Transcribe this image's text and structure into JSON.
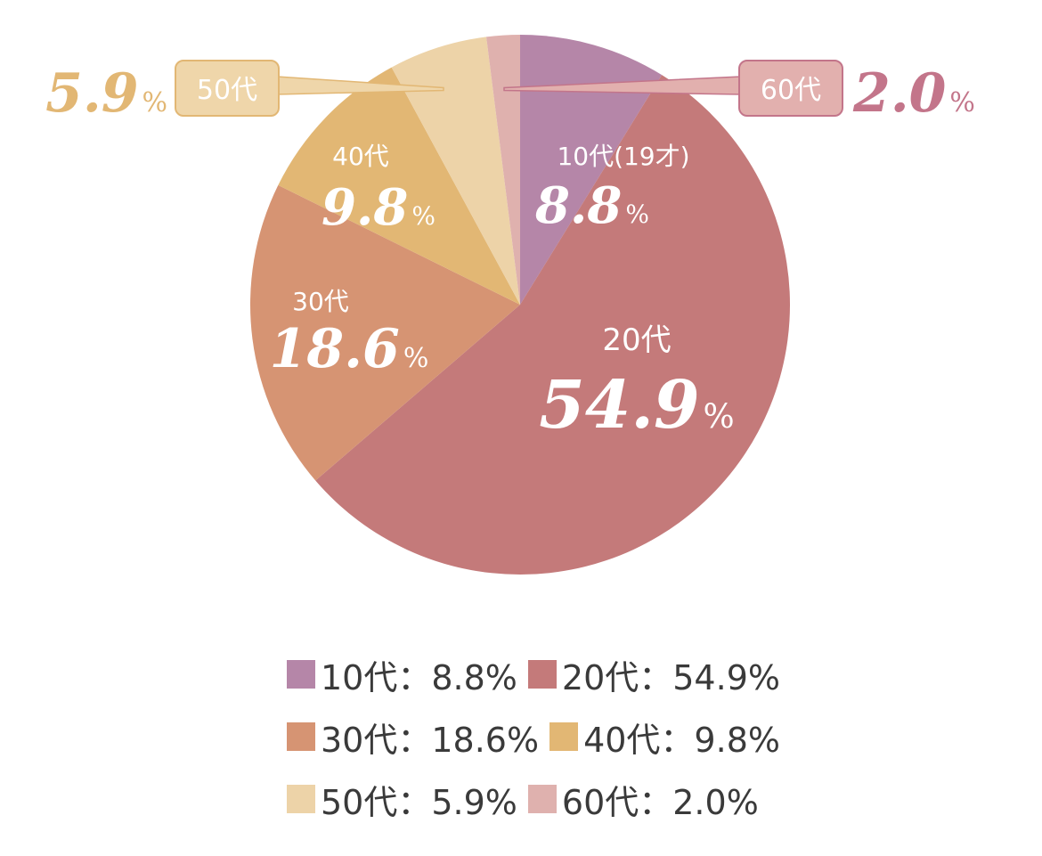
{
  "chart_data": {
    "type": "pie",
    "start_angle": "top",
    "direction": "clockwise",
    "slices": [
      {
        "label": "10代",
        "value": 8.8,
        "value_text": "8.8",
        "color": "#b586a8",
        "inner_label": "10代(19才)"
      },
      {
        "label": "20代",
        "value": 54.9,
        "value_text": "54.9",
        "color": "#c47a7a",
        "inner_label": "20代"
      },
      {
        "label": "30代",
        "value": 18.6,
        "value_text": "18.6",
        "color": "#d69473",
        "inner_label": "30代"
      },
      {
        "label": "40代",
        "value": 9.8,
        "value_text": "9.8",
        "color": "#e2b774",
        "inner_label": "40代"
      },
      {
        "label": "50代",
        "value": 5.9,
        "value_text": "5.9",
        "color": "#edd3a8",
        "inner_label": ""
      },
      {
        "label": "60代",
        "value": 2.0,
        "value_text": "2.0",
        "color": "#dfb1ae",
        "inner_label": ""
      }
    ],
    "callouts": {
      "left": {
        "label": "50代",
        "value_text": "5.9",
        "color": "#e2b774",
        "box_color": "#efd6aa"
      },
      "right": {
        "label": "60代",
        "value_text": "2.0",
        "color": "#c3758a",
        "box_color": "#e2b0ae"
      }
    },
    "percent_sign": "%",
    "legend": {
      "separator": "：",
      "rows": [
        [
          {
            "label": "10代",
            "value_text": "8.8%",
            "color": "#b586a8"
          },
          {
            "label": "20代",
            "value_text": "54.9%",
            "color": "#c47a7a"
          }
        ],
        [
          {
            "label": "30代",
            "value_text": "18.6%",
            "color": "#d69473"
          },
          {
            "label": "40代",
            "value_text": "9.8%",
            "color": "#e2b774"
          }
        ],
        [
          {
            "label": "50代",
            "value_text": "5.9%",
            "color": "#edd3a8"
          },
          {
            "label": "60代",
            "value_text": "2.0%",
            "color": "#dfb1ae"
          }
        ]
      ]
    }
  }
}
